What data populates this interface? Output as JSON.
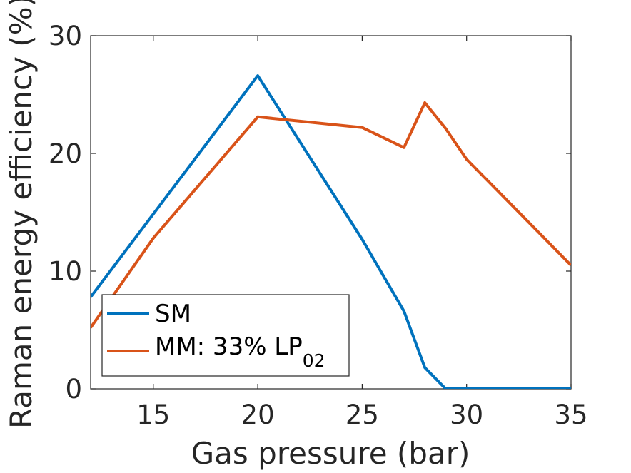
{
  "chart_data": {
    "type": "line",
    "xlabel": "Gas pressure (bar)",
    "ylabel": "Raman energy efficiency (%)",
    "xlim": [
      12,
      35
    ],
    "ylim": [
      0,
      30
    ],
    "xticks": [
      "15",
      "20",
      "25",
      "30",
      "35"
    ],
    "yticks": [
      "0",
      "10",
      "20",
      "30"
    ],
    "grid": false,
    "legend_position": "bottom-left",
    "series": [
      {
        "name": "SM",
        "color": "#0072BD",
        "x": [
          12,
          20,
          25,
          27,
          28,
          29,
          30,
          35
        ],
        "y": [
          7.8,
          26.6,
          12.7,
          6.6,
          1.8,
          0.0,
          0.0,
          0.0
        ]
      },
      {
        "name": "MM: 33% LP02",
        "name_main": "MM: 33% LP",
        "name_sub": "02",
        "color": "#D95319",
        "x": [
          12,
          15,
          20,
          25,
          27,
          28,
          29,
          30,
          35
        ],
        "y": [
          5.2,
          12.8,
          23.1,
          22.2,
          20.5,
          24.3,
          22.1,
          19.5,
          10.5
        ]
      }
    ]
  }
}
